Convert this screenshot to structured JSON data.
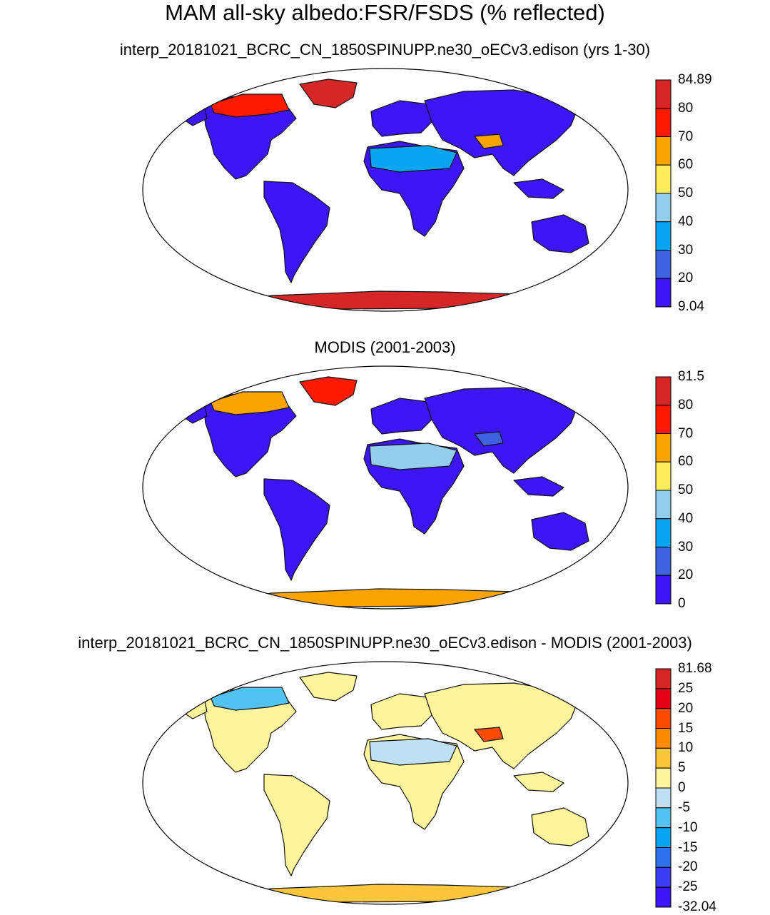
{
  "figure": {
    "title": "MAM all-sky albedo:FSR/FSDS (% reflected)"
  },
  "panels": [
    {
      "title": "interp_20181021_BCRC_CN_1850SPINUPP.ne30_oECv3.edison (yrs 1-30)",
      "colorbar": {
        "labels": [
          "84.89",
          "80",
          "70",
          "60",
          "50",
          "40",
          "30",
          "20",
          "9.04"
        ],
        "colors": [
          "#d62728",
          "#fd1a00",
          "#fba300",
          "#feec5c",
          "#94cdeb",
          "#0aa5f0",
          "#3f62e0",
          "#3c16f7"
        ]
      },
      "regions": {
        "land": "#3c16f7",
        "arctic": "#fd1a00",
        "greenland": "#d62728",
        "antarctica": "#d62728",
        "sahara": "#0aa5f0",
        "tibet": "#fba300"
      }
    },
    {
      "title": "MODIS (2001-2003)",
      "colorbar": {
        "labels": [
          "81.5",
          "80",
          "70",
          "60",
          "50",
          "40",
          "30",
          "20",
          "0"
        ],
        "colors": [
          "#d62728",
          "#fd1a00",
          "#fba300",
          "#feec5c",
          "#94cdeb",
          "#0aa5f0",
          "#3f62e0",
          "#3c16f7"
        ]
      },
      "regions": {
        "land": "#3c16f7",
        "arctic": "#fba300",
        "greenland": "#fd1a00",
        "antarctica": "#fba300",
        "sahara": "#94cdeb",
        "tibet": "#3f62e0"
      }
    },
    {
      "title": "interp_20181021_BCRC_CN_1850SPINUPP.ne30_oECv3.edison - MODIS (2001-2003)",
      "colorbar": {
        "labels": [
          "81.68",
          "25",
          "20",
          "15",
          "10",
          "5",
          "0",
          "-5",
          "-10",
          "-15",
          "-20",
          "-25",
          "-32.04"
        ],
        "colors": [
          "#d62728",
          "#e30014",
          "#fa4b00",
          "#fb8c00",
          "#fbc63c",
          "#fef49c",
          "#bfe0f2",
          "#52c2f0",
          "#0aa5f0",
          "#2f72f0",
          "#3c3ef3",
          "#3c16f7"
        ]
      },
      "regions": {
        "land": "#fef49c",
        "arctic": "#52c2f0",
        "greenland": "#fef49c",
        "antarctica": "#fbc63c",
        "sahara": "#bfe0f2",
        "tibet": "#fa4b00"
      }
    }
  ]
}
